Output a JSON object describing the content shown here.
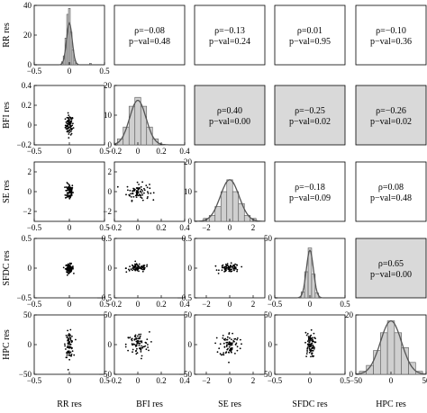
{
  "chart_data": {
    "type": "scatter",
    "title": "",
    "variables": [
      "RR res",
      "BFI res",
      "SE res",
      "SFDC res",
      "HPC res"
    ],
    "panels": {
      "diagonal": "histogram with normal curve",
      "lower": "scatter of residuals",
      "upper": "Spearman correlation and p-value"
    },
    "axes": [
      {
        "name": "RR res",
        "lim": [
          -0.5,
          0.5
        ],
        "ticks": [
          -0.5,
          0,
          0.5
        ],
        "tick_labels": [
          "−0.5",
          "0",
          "0.5"
        ]
      },
      {
        "name": "BFI res",
        "lim": [
          -0.2,
          0.4
        ],
        "ticks": [
          -0.2,
          0,
          0.2,
          0.4
        ],
        "tick_labels": [
          "−0.2",
          "0",
          "0.2",
          "0.4"
        ]
      },
      {
        "name": "SE res",
        "lim": [
          -3,
          3
        ],
        "ticks": [
          -2,
          0,
          2
        ],
        "tick_labels": [
          "−2",
          "0",
          "2"
        ]
      },
      {
        "name": "SFDC res",
        "lim": [
          -0.5,
          0.5
        ],
        "ticks": [
          -0.5,
          0,
          0.5
        ],
        "tick_labels": [
          "−0.5",
          "0",
          "0.5"
        ]
      },
      {
        "name": "HPC res",
        "lim": [
          -50,
          50
        ],
        "ticks": [
          -50,
          0,
          50
        ],
        "tick_labels": [
          "−50",
          "0",
          "50"
        ]
      }
    ],
    "first_column_y_ticks": [
      {
        "ticks": [
          0,
          20,
          40
        ],
        "tick_labels": [
          "0",
          "20",
          "40"
        ],
        "lim": [
          0,
          40
        ]
      },
      {
        "ticks": [
          -0.2,
          0,
          0.2,
          0.4
        ],
        "tick_labels": [
          "−0.2",
          "0",
          "0.2",
          "0.4"
        ],
        "lim": [
          -0.2,
          0.4
        ]
      },
      {
        "ticks": [
          -2,
          0,
          2
        ],
        "tick_labels": [
          "−2",
          "0",
          "2"
        ],
        "lim": [
          -3,
          3
        ]
      },
      {
        "ticks": [
          -0.5,
          0,
          0.5
        ],
        "tick_labels": [
          "−0.5",
          "0",
          "0.5"
        ],
        "lim": [
          -0.5,
          0.5
        ]
      },
      {
        "ticks": [
          -50,
          0,
          50
        ],
        "tick_labels": [
          "−50",
          "0",
          "50"
        ],
        "lim": [
          -50,
          50
        ]
      }
    ],
    "diag_y_ticks": [
      {
        "ticks": [
          0,
          20,
          40
        ],
        "tick_labels": [
          "0",
          "20",
          "40"
        ],
        "lim": [
          0,
          40
        ]
      },
      {
        "ticks": [
          0,
          10,
          20
        ],
        "tick_labels": [
          "0",
          "10",
          "20"
        ],
        "lim": [
          0,
          20
        ]
      },
      {
        "ticks": [
          0,
          10,
          20
        ],
        "tick_labels": [
          "0",
          "10",
          "20"
        ],
        "lim": [
          0,
          20
        ]
      },
      {
        "ticks": [
          0,
          50
        ],
        "tick_labels": [
          "0",
          "50"
        ],
        "lim": [
          0,
          50
        ]
      },
      {
        "ticks": [
          0,
          20
        ],
        "tick_labels": [
          "0",
          "20"
        ],
        "lim": [
          0,
          20
        ]
      }
    ],
    "diag_x_ticks_labelled": [
      {
        "ticks": [
          -0.5,
          0,
          0.5
        ],
        "tick_labels": [
          "−0.5",
          "0",
          "0.5"
        ]
      },
      {
        "ticks": [
          -0.2,
          0,
          0.2,
          0.4
        ],
        "tick_labels": [
          "−0.2",
          "0",
          "0.2",
          "0.4"
        ]
      },
      {
        "ticks": [
          -2,
          0,
          2
        ],
        "tick_labels": [
          "−2",
          "0",
          "2"
        ]
      },
      {
        "ticks": [
          -0.5,
          0,
          0.5
        ],
        "tick_labels": [
          "−0.5",
          "0",
          "0.5"
        ]
      },
      {
        "ticks": [
          -50,
          0,
          50
        ],
        "tick_labels": [
          "−50",
          "0",
          "50"
        ]
      }
    ],
    "histograms": [
      {
        "var": "RR res",
        "bins": [
          -0.1,
          -0.075,
          -0.05,
          -0.025,
          0,
          0.025,
          0.05,
          0.075,
          0.1,
          0.3
        ],
        "counts": [
          2,
          6,
          18,
          34,
          38,
          22,
          10,
          3,
          1,
          1
        ],
        "bin_width": 0.025
      },
      {
        "var": "BFI res",
        "bins": [
          -0.15,
          -0.1,
          -0.05,
          0,
          0.05,
          0.1,
          0.15
        ],
        "counts": [
          2,
          6,
          13,
          16,
          13,
          6,
          2
        ],
        "bin_width": 0.05
      },
      {
        "var": "SE res",
        "bins": [
          -2,
          -1.5,
          -1,
          -0.5,
          0,
          0.5,
          1,
          1.5,
          2
        ],
        "counts": [
          1,
          2,
          5,
          10,
          14,
          10,
          6,
          2,
          1
        ],
        "bin_width": 0.5
      },
      {
        "var": "SFDC res",
        "bins": [
          -0.1,
          -0.05,
          0,
          0.05,
          0.1
        ],
        "counts": [
          5,
          22,
          42,
          20,
          4
        ],
        "bin_width": 0.05
      },
      {
        "var": "HPC res",
        "bins": [
          -40,
          -30,
          -20,
          -10,
          0,
          10,
          20,
          30,
          40
        ],
        "counts": [
          1,
          3,
          8,
          14,
          18,
          14,
          9,
          4,
          1
        ],
        "bin_width": 10
      }
    ],
    "normal_curves": [
      {
        "var": "RR res",
        "mean": 0,
        "sd": 0.04,
        "peak": 28
      },
      {
        "var": "BFI res",
        "mean": 0,
        "sd": 0.07,
        "peak": 15
      },
      {
        "var": "SE res",
        "mean": 0,
        "sd": 0.8,
        "peak": 14
      },
      {
        "var": "SFDC res",
        "mean": 0,
        "sd": 0.05,
        "peak": 40
      },
      {
        "var": "HPC res",
        "mean": 0,
        "sd": 15,
        "peak": 18
      }
    ],
    "correlations": [
      {
        "row": 0,
        "col": 1,
        "rho": "ρ=−0.08",
        "pval": "p−val=0.48",
        "significant": false
      },
      {
        "row": 0,
        "col": 2,
        "rho": "ρ=−0.13",
        "pval": "p−val=0.24",
        "significant": false
      },
      {
        "row": 0,
        "col": 3,
        "rho": "ρ=0.01",
        "pval": "p−val=0.95",
        "significant": false
      },
      {
        "row": 0,
        "col": 4,
        "rho": "ρ=−0.10",
        "pval": "p−val=0.36",
        "significant": false
      },
      {
        "row": 1,
        "col": 2,
        "rho": "ρ=0.40",
        "pval": "p−val=0.00",
        "significant": true
      },
      {
        "row": 1,
        "col": 3,
        "rho": "ρ=−0.25",
        "pval": "p−val=0.02",
        "significant": true
      },
      {
        "row": 1,
        "col": 4,
        "rho": "ρ=−0.26",
        "pval": "p−val=0.02",
        "significant": true
      },
      {
        "row": 2,
        "col": 3,
        "rho": "ρ=−0.18",
        "pval": "p−val=0.09",
        "significant": false
      },
      {
        "row": 2,
        "col": 4,
        "rho": "ρ=0.08",
        "pval": "p−val=0.48",
        "significant": false
      },
      {
        "row": 3,
        "col": 4,
        "rho": "ρ=0.65",
        "pval": "p−val=0.00",
        "significant": true
      }
    ],
    "scatter_points_per_panel": 80,
    "shade_color": "#d9d9d9",
    "point_color": "#000000",
    "bar_color": "#cfcfcf",
    "grid": false,
    "legend": "none"
  }
}
